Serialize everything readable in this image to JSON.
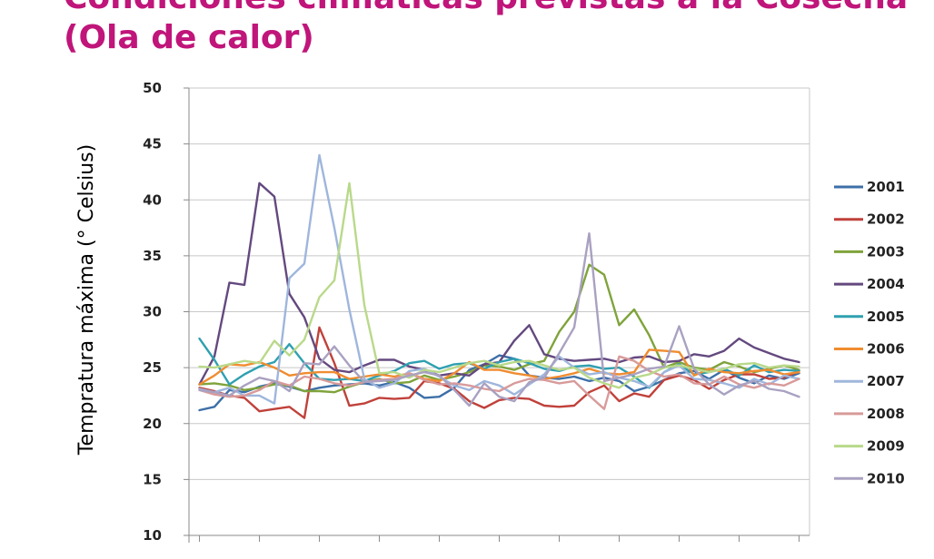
{
  "slide": {
    "title_line1": "Condiciones climáticas previstas a la Cosecha",
    "title_line2": "(Ola de calor)",
    "title_color": "#c0157a"
  },
  "chart_data": {
    "type": "line",
    "title": "",
    "ylabel": "Tempratura máxima (° Celsius)",
    "xlabel": "",
    "ylim": [
      10,
      50
    ],
    "yticks": [
      10,
      15,
      20,
      25,
      30,
      35,
      40,
      45,
      50
    ],
    "x": [
      1,
      2,
      3,
      4,
      5,
      6,
      7,
      8,
      9,
      10,
      11,
      12,
      13,
      14,
      15,
      16,
      17,
      18,
      19,
      20,
      21,
      22,
      23,
      24,
      25,
      26,
      27,
      28,
      29,
      30,
      31,
      32,
      33,
      34,
      35,
      36,
      37,
      38,
      39,
      40,
      41
    ],
    "grid": true,
    "legend_position": "right",
    "series": [
      {
        "name": "2001",
        "color": "#3d6fa8",
        "values": [
          21.2,
          21.5,
          23.0,
          22.8,
          23.3,
          23.6,
          23.3,
          22.9,
          23.2,
          23.4,
          23.5,
          23.6,
          23.4,
          23.7,
          23.2,
          22.3,
          22.4,
          23.2,
          24.8,
          25.3,
          26.1,
          25.8,
          24.3,
          24.1,
          24.0,
          24.2,
          23.8,
          24.1,
          23.8,
          22.9,
          23.3,
          23.9,
          24.5,
          24.7,
          24.0,
          24.8,
          24.1,
          23.6,
          24.3,
          24.0,
          24.5
        ]
      },
      {
        "name": "2002",
        "color": "#c0413a",
        "values": [
          23.2,
          22.9,
          22.5,
          22.3,
          21.1,
          21.3,
          21.5,
          20.5,
          28.6,
          25.4,
          21.6,
          21.8,
          22.3,
          22.2,
          22.3,
          23.8,
          23.6,
          23.1,
          22.0,
          21.4,
          22.1,
          22.3,
          22.2,
          21.6,
          21.5,
          21.6,
          22.8,
          23.4,
          22.0,
          22.7,
          22.4,
          23.9,
          24.3,
          23.9,
          23.1,
          23.9,
          24.4,
          24.4,
          24.0,
          24.1,
          24.7
        ]
      },
      {
        "name": "2003",
        "color": "#7fa33b",
        "values": [
          23.5,
          23.6,
          23.4,
          23.0,
          23.2,
          23.5,
          23.4,
          22.9,
          22.9,
          22.8,
          23.3,
          23.7,
          24.0,
          23.6,
          23.7,
          24.3,
          23.9,
          24.2,
          24.6,
          25.2,
          25.1,
          24.8,
          25.3,
          25.6,
          28.2,
          30.0,
          34.2,
          33.3,
          28.8,
          30.2,
          27.9,
          25.0,
          25.5,
          25.0,
          24.8,
          25.5,
          25.1,
          24.6,
          24.9,
          25.2,
          24.8
        ]
      },
      {
        "name": "2004",
        "color": "#64497f",
        "values": [
          23.5,
          26.0,
          32.6,
          32.4,
          41.5,
          40.3,
          31.6,
          29.5,
          25.8,
          24.8,
          24.6,
          25.2,
          25.7,
          25.7,
          25.1,
          24.8,
          24.3,
          24.5,
          24.3,
          25.3,
          25.5,
          27.4,
          28.8,
          26.2,
          25.8,
          25.6,
          25.7,
          25.8,
          25.5,
          25.9,
          26.0,
          25.5,
          25.6,
          26.2,
          26.0,
          26.5,
          27.6,
          26.8,
          26.3,
          25.8,
          25.5
        ]
      },
      {
        "name": "2005",
        "color": "#2fa0b0",
        "values": [
          27.6,
          25.7,
          23.5,
          24.4,
          25.1,
          25.5,
          27.1,
          25.4,
          24.0,
          23.9,
          24.0,
          23.8,
          24.3,
          24.7,
          25.4,
          25.6,
          24.9,
          25.3,
          25.4,
          24.9,
          25.5,
          25.8,
          25.4,
          24.9,
          24.7,
          25.1,
          25.2,
          24.9,
          25.0,
          24.2,
          23.2,
          24.6,
          25.3,
          24.4,
          24.6,
          24.9,
          24.3,
          25.2,
          24.6,
          24.8,
          24.7
        ]
      },
      {
        "name": "2006",
        "color": "#f08c30",
        "values": [
          23.5,
          24.3,
          25.3,
          25.2,
          25.5,
          25.0,
          24.3,
          24.5,
          24.6,
          24.6,
          24.0,
          24.2,
          24.4,
          24.2,
          24.5,
          24.0,
          23.8,
          24.5,
          25.5,
          24.8,
          24.8,
          24.5,
          24.3,
          24.0,
          24.2,
          24.5,
          24.9,
          24.5,
          24.4,
          24.6,
          26.6,
          26.5,
          26.4,
          24.3,
          24.9,
          24.6,
          24.5,
          24.7,
          24.8,
          24.4,
          24.6
        ]
      },
      {
        "name": "2007",
        "color": "#9fb6dc",
        "values": [
          23.1,
          22.8,
          23.2,
          22.5,
          22.5,
          21.8,
          33.0,
          34.3,
          44.0,
          37.5,
          30.2,
          24.0,
          23.2,
          23.6,
          24.7,
          24.9,
          24.2,
          23.4,
          23.0,
          23.8,
          23.4,
          22.6,
          23.5,
          24.4,
          26.0,
          25.0,
          24.4,
          24.6,
          24.1,
          23.8,
          23.3,
          24.6,
          25.2,
          24.0,
          23.9,
          23.6,
          23.2,
          24.0,
          23.5,
          24.3,
          24.0
        ]
      },
      {
        "name": "2008",
        "color": "#d89a9a",
        "values": [
          23.0,
          22.6,
          22.4,
          22.5,
          23.0,
          23.8,
          23.4,
          24.2,
          24.0,
          23.6,
          23.4,
          23.7,
          23.9,
          24.0,
          24.5,
          23.9,
          23.5,
          23.6,
          23.4,
          23.1,
          22.9,
          23.6,
          24.0,
          23.9,
          23.6,
          23.8,
          22.5,
          21.3,
          26.0,
          25.6,
          24.7,
          24.2,
          24.4,
          23.6,
          23.5,
          24.2,
          23.5,
          23.2,
          23.6,
          23.4,
          24.0
        ]
      },
      {
        "name": "2009",
        "color": "#b9d98a",
        "values": [
          25.1,
          25.0,
          25.3,
          25.6,
          25.4,
          27.4,
          26.1,
          27.5,
          31.3,
          32.8,
          41.5,
          30.6,
          24.5,
          24.6,
          24.1,
          24.8,
          24.6,
          25.0,
          25.4,
          25.6,
          25.2,
          25.5,
          25.6,
          25.2,
          24.8,
          25.0,
          24.1,
          23.6,
          23.2,
          24.1,
          24.4,
          25.0,
          25.2,
          24.9,
          24.6,
          24.9,
          25.3,
          25.4,
          25.0,
          25.2,
          25.1
        ]
      },
      {
        "name": "2010",
        "color": "#a9a1c1",
        "values": [
          23.0,
          22.8,
          22.5,
          23.4,
          24.1,
          23.8,
          22.9,
          25.4,
          25.3,
          26.9,
          25.2,
          23.7,
          23.8,
          23.9,
          24.3,
          24.6,
          24.3,
          23.0,
          21.6,
          23.6,
          22.4,
          22.0,
          23.7,
          24.1,
          26.3,
          28.6,
          37.0,
          23.8,
          24.1,
          24.4,
          24.9,
          25.1,
          28.7,
          24.9,
          23.5,
          22.6,
          23.4,
          23.8,
          23.1,
          22.9,
          22.4
        ]
      }
    ]
  }
}
